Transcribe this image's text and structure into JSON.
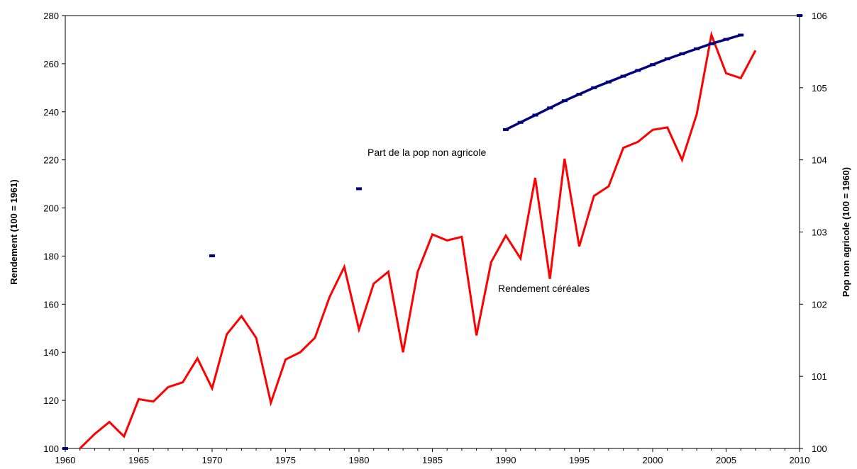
{
  "chart_data": {
    "type": "line",
    "title": "",
    "xlabel": "",
    "ylabel": "Rendement (100 = 1961)",
    "y2label": "Pop non agricole (100 = 1960)",
    "xlim": [
      1960,
      2010
    ],
    "ylim": [
      100,
      280
    ],
    "y2lim": [
      100,
      106
    ],
    "x_ticks": [
      1960,
      1965,
      1970,
      1975,
      1980,
      1985,
      1990,
      1995,
      2000,
      2005,
      2010
    ],
    "y_ticks": [
      100,
      120,
      140,
      160,
      180,
      200,
      220,
      240,
      260,
      280
    ],
    "y2_ticks": [
      100,
      101,
      102,
      103,
      104,
      105,
      106
    ],
    "grid": false,
    "legend": "none",
    "annotations": [
      {
        "text": "Part de la pop non agricole",
        "series": "pop"
      },
      {
        "text": "Rendement céréales",
        "series": "rendement"
      }
    ],
    "series": [
      {
        "key": "rendement",
        "axis": "left",
        "color": "#ff0000",
        "style": "line",
        "x": [
          1961,
          1962,
          1963,
          1964,
          1965,
          1966,
          1967,
          1968,
          1969,
          1970,
          1971,
          1972,
          1973,
          1974,
          1975,
          1976,
          1977,
          1978,
          1979,
          1980,
          1981,
          1982,
          1983,
          1984,
          1985,
          1986,
          1987,
          1988,
          1989,
          1990,
          1991,
          1992,
          1993,
          1994,
          1995,
          1996,
          1997,
          1998,
          1999,
          2000,
          2001,
          2002,
          2003,
          2004,
          2005,
          2006,
          2007
        ],
        "values": [
          100,
          106,
          111,
          105,
          120.5,
          119.5,
          125.5,
          127.5,
          137.5,
          125,
          147.5,
          155,
          146,
          119,
          137,
          140,
          146,
          163,
          175.5,
          149.5,
          168.5,
          173.5,
          140,
          173.5,
          189,
          186.5,
          188,
          147,
          177.5,
          188.5,
          179,
          212.5,
          170.5,
          220.5,
          184,
          205,
          209,
          225,
          227.5,
          232.5,
          233.5,
          220,
          239,
          272,
          256,
          254,
          265.5
        ]
      },
      {
        "key": "pop",
        "axis": "right",
        "color": "#00007f",
        "style": "markers-line",
        "x": [
          1960,
          1970,
          1980,
          1990,
          1991,
          1992,
          1993,
          1994,
          1995,
          1996,
          1997,
          1998,
          1999,
          2000,
          2001,
          2002,
          2003,
          2004,
          2005,
          2006,
          2010
        ],
        "values": [
          100,
          102.67,
          103.6,
          104.42,
          104.52,
          104.62,
          104.72,
          104.82,
          104.91,
          105.0,
          105.08,
          105.16,
          105.24,
          105.32,
          105.4,
          105.47,
          105.54,
          105.61,
          105.67,
          105.73,
          106.0
        ]
      }
    ]
  }
}
